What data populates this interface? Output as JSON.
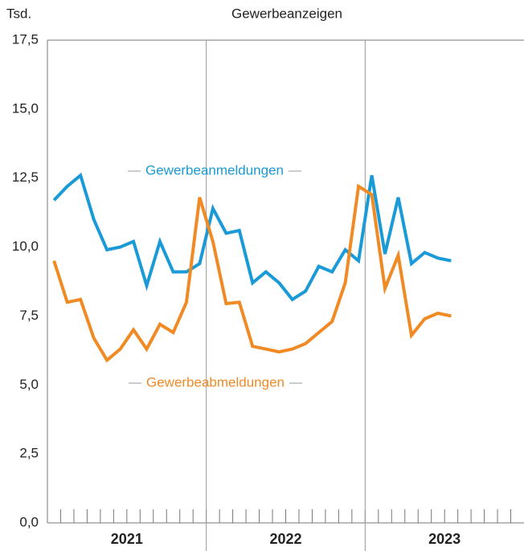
{
  "chart_data": {
    "type": "line",
    "title": "Gewerbeanzeigen",
    "y_unit": "Tsd.",
    "categories": [
      null,
      null,
      null,
      null,
      null,
      null,
      null,
      null,
      null,
      null,
      null,
      null,
      null,
      null,
      null,
      null,
      null,
      null,
      null,
      null,
      null,
      null,
      null,
      null,
      null,
      null,
      null,
      null,
      null,
      null,
      null,
      null,
      null,
      null,
      null,
      null
    ],
    "year_labels": [
      "2021",
      "2022",
      "2023"
    ],
    "series": [
      {
        "name": "Gewerbeanmeldungen",
        "color": "#1a9ad6",
        "values": [
          11.7,
          12.2,
          12.6,
          11.0,
          9.9,
          10.0,
          10.2,
          8.6,
          10.2,
          9.1,
          9.1,
          9.4,
          11.4,
          10.5,
          10.6,
          8.7,
          9.1,
          8.7,
          8.1,
          8.4,
          9.3,
          9.1,
          9.9,
          9.5,
          12.6,
          9.75,
          11.8,
          9.4,
          9.8,
          9.6,
          9.5,
          null,
          null,
          null,
          null,
          null
        ]
      },
      {
        "name": "Gewerbeabmeldungen",
        "color": "#f08a24",
        "values": [
          9.5,
          8.0,
          8.1,
          6.7,
          5.9,
          6.3,
          7.0,
          6.3,
          7.2,
          6.9,
          8.0,
          11.8,
          10.2,
          7.95,
          8.0,
          6.4,
          6.3,
          6.2,
          6.3,
          6.5,
          6.9,
          7.3,
          8.7,
          12.2,
          11.9,
          8.5,
          9.7,
          6.8,
          7.4,
          7.6,
          7.5,
          null,
          null,
          null,
          null,
          null
        ]
      }
    ],
    "ylim": [
      0,
      17.5
    ],
    "yticks": [
      {
        "value": 0,
        "label": "0,0"
      },
      {
        "value": 2.5,
        "label": "2,5"
      },
      {
        "value": 5,
        "label": "5,0"
      },
      {
        "value": 7.5,
        "label": "7,5"
      },
      {
        "value": 10,
        "label": "10,0"
      },
      {
        "value": 12.5,
        "label": "12,5"
      },
      {
        "value": 15,
        "label": "15,0"
      },
      {
        "value": 17.5,
        "label": "17,5"
      }
    ]
  }
}
